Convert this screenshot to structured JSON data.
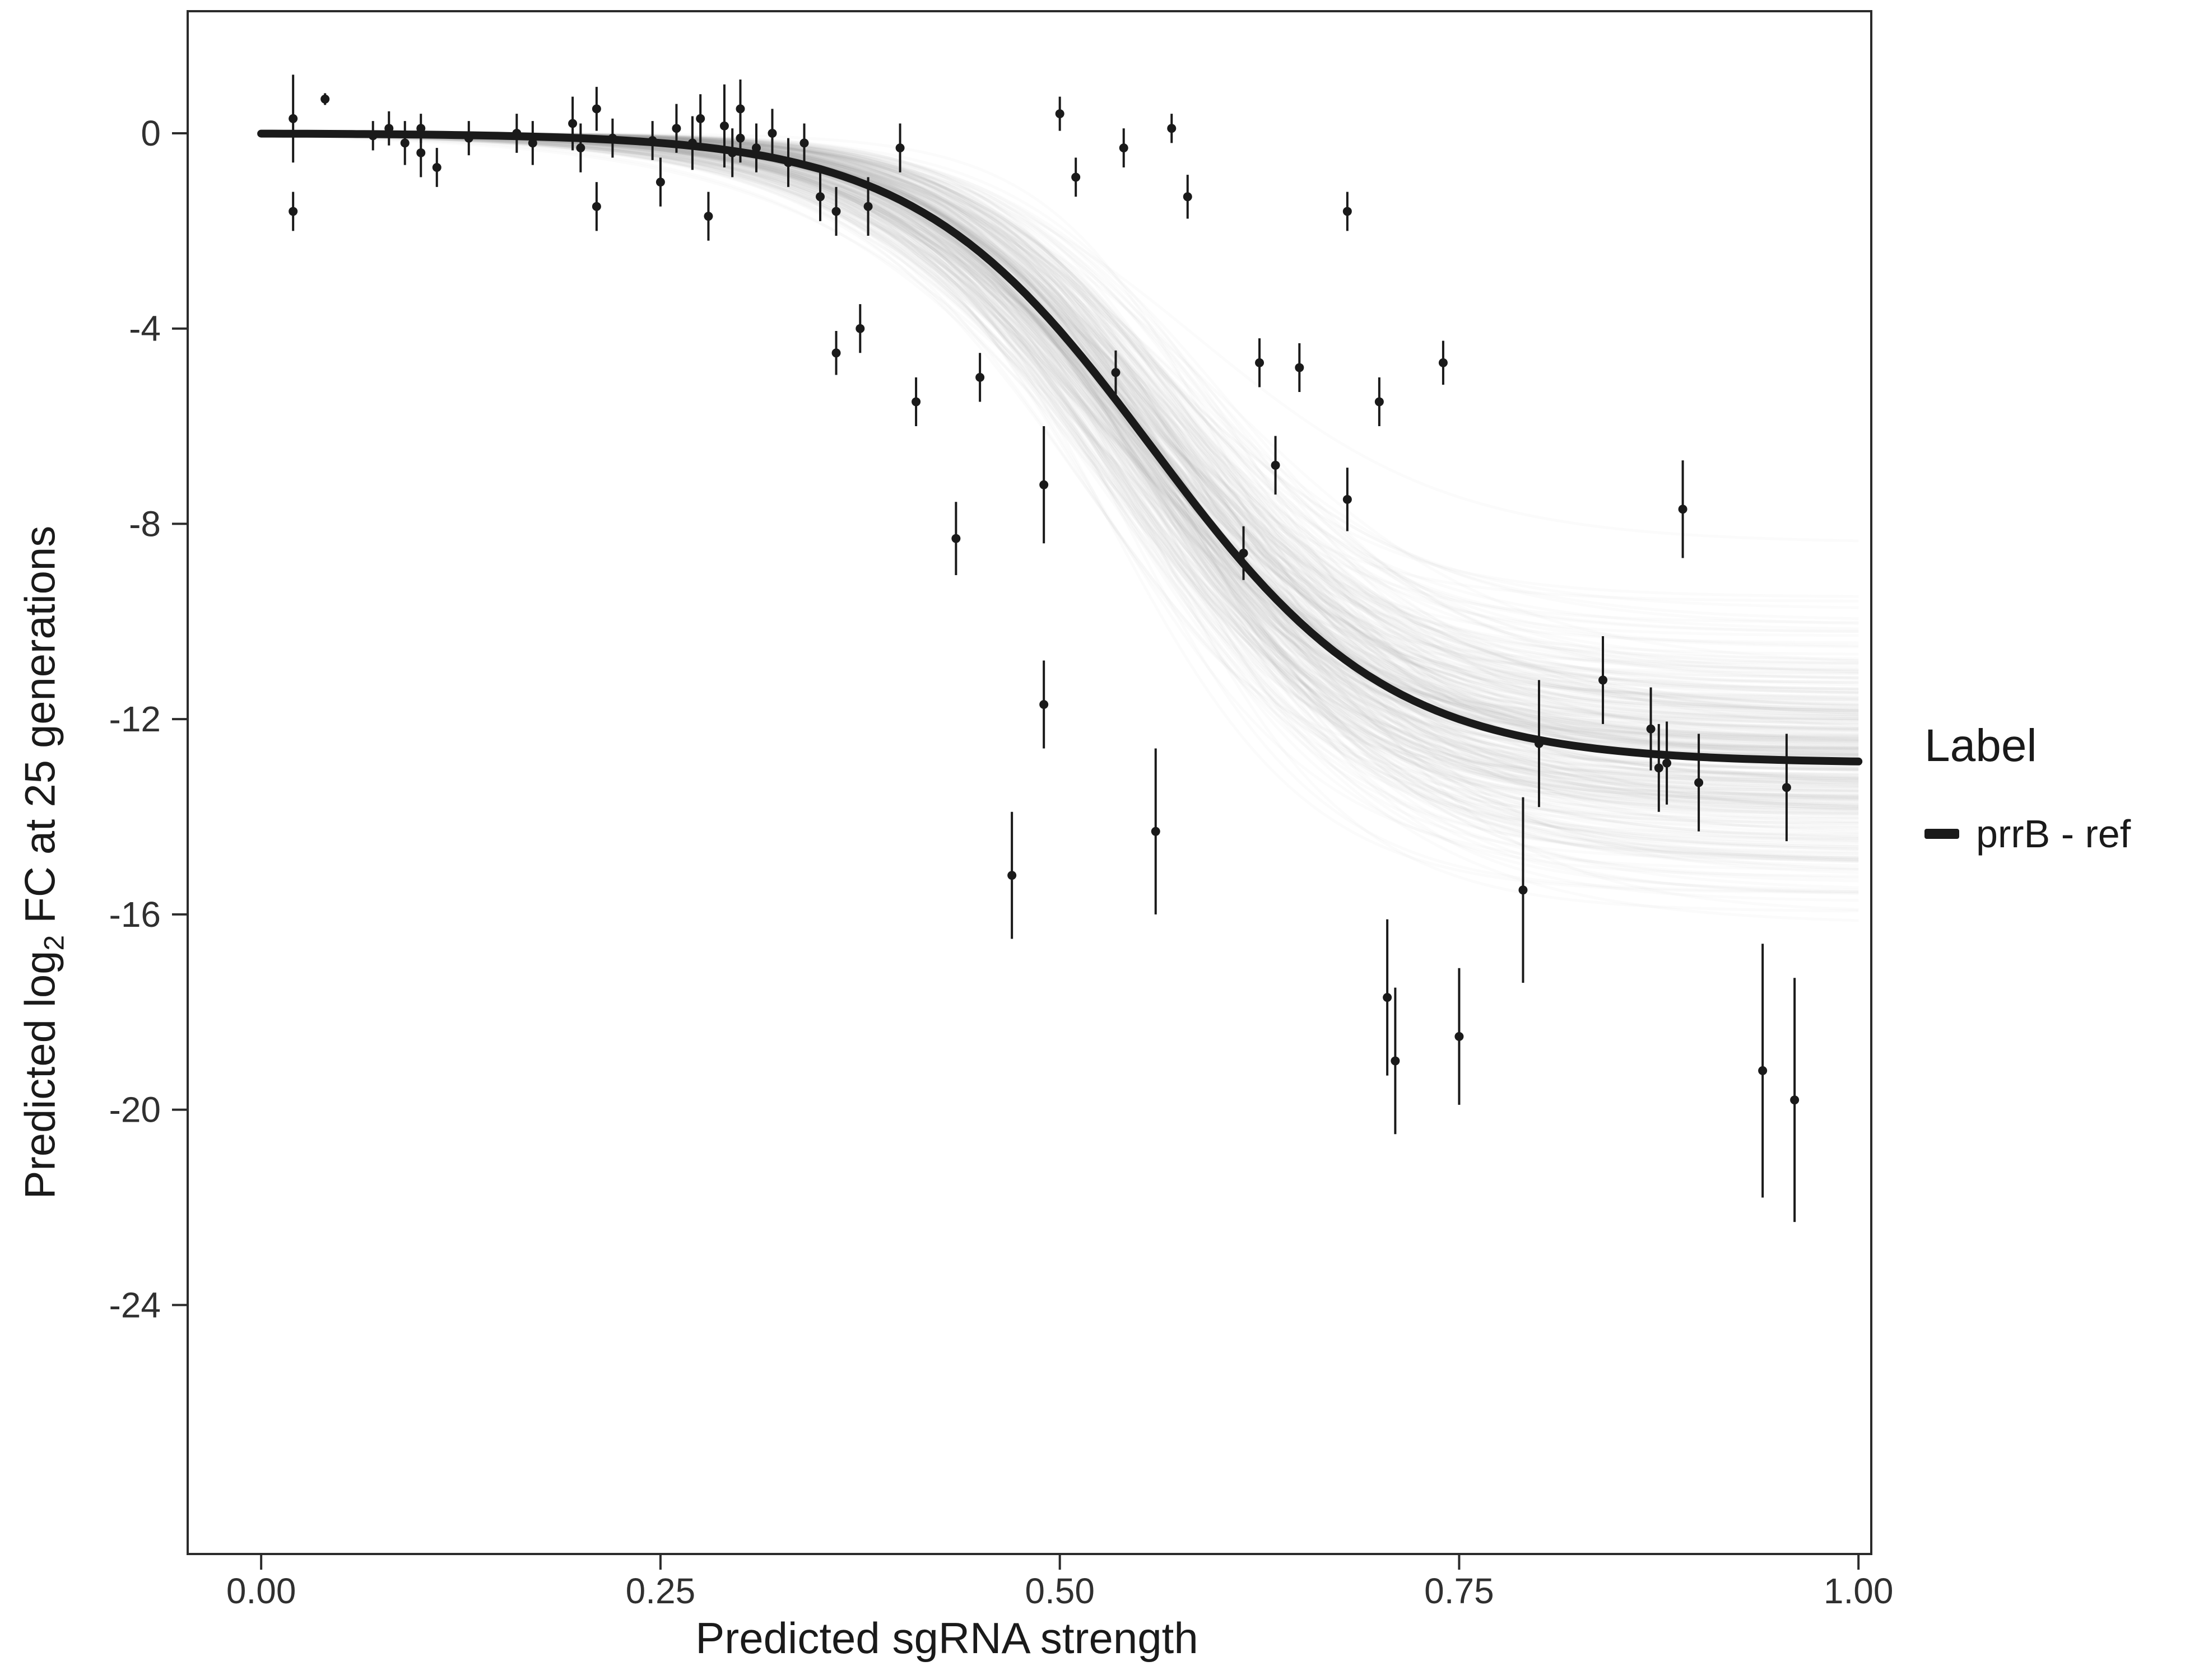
{
  "chart_data": {
    "type": "scatter",
    "title": "",
    "xlabel": "Predicted sgRNA strength",
    "ylabel": "Predicted log₂ FC at 25 generations",
    "ylabel_parts": {
      "pre": "Predicted  log",
      "sub": "2",
      "post": " FC at 25 generations"
    },
    "xlim": [
      -0.046,
      1.008
    ],
    "ylim": [
      -29.1,
      2.5
    ],
    "grid": false,
    "legend_position": "right",
    "xticks": [
      {
        "v": 0.0,
        "label": "0.00"
      },
      {
        "v": 0.25,
        "label": "0.25"
      },
      {
        "v": 0.5,
        "label": "0.50"
      },
      {
        "v": 0.75,
        "label": "0.75"
      },
      {
        "v": 1.0,
        "label": "1.00"
      }
    ],
    "yticks": [
      {
        "v": 0,
        "label": "0"
      },
      {
        "v": -4,
        "label": "-4"
      },
      {
        "v": -8,
        "label": "-8"
      },
      {
        "v": -12,
        "label": "-12"
      },
      {
        "v": -16,
        "label": "-16"
      },
      {
        "v": -20,
        "label": "-20"
      },
      {
        "v": -24,
        "label": "-24"
      }
    ],
    "fit": {
      "model": "sigmoid",
      "L": 12.9,
      "x0": 0.558,
      "k": 13.5
    },
    "ensemble": {
      "count": 320,
      "L_sd": 1.3,
      "x0_sd": 0.02,
      "k_sd": 1.5,
      "alpha": 0.045,
      "seed": 11
    },
    "style": {
      "curve_color": "#1a1a1a",
      "point_color": "#1a1a1a",
      "ensemble_color": "#9a9a9a",
      "axis_color": "#2b2b2b",
      "text_color": "#303030",
      "background": "#ffffff"
    },
    "points": [
      [
        0.02,
        0.3,
        0.9
      ],
      [
        0.02,
        -1.6,
        0.4
      ],
      [
        0.04,
        0.7,
        0.12
      ],
      [
        0.07,
        -0.05,
        0.3
      ],
      [
        0.08,
        0.1,
        0.35
      ],
      [
        0.09,
        -0.2,
        0.45
      ],
      [
        0.1,
        -0.4,
        0.5
      ],
      [
        0.1,
        0.1,
        0.3
      ],
      [
        0.11,
        -0.7,
        0.4
      ],
      [
        0.13,
        -0.1,
        0.35
      ],
      [
        0.16,
        0.0,
        0.4
      ],
      [
        0.17,
        -0.2,
        0.45
      ],
      [
        0.195,
        0.2,
        0.55
      ],
      [
        0.2,
        -0.3,
        0.5
      ],
      [
        0.21,
        0.5,
        0.45
      ],
      [
        0.21,
        -1.5,
        0.5
      ],
      [
        0.22,
        -0.1,
        0.4
      ],
      [
        0.245,
        -0.15,
        0.4
      ],
      [
        0.25,
        -1.0,
        0.5
      ],
      [
        0.26,
        0.1,
        0.5
      ],
      [
        0.27,
        -0.2,
        0.55
      ],
      [
        0.275,
        0.3,
        0.5
      ],
      [
        0.28,
        -1.7,
        0.5
      ],
      [
        0.29,
        0.15,
        0.85
      ],
      [
        0.295,
        -0.4,
        0.5
      ],
      [
        0.3,
        0.5,
        0.6
      ],
      [
        0.3,
        -0.1,
        0.5
      ],
      [
        0.31,
        -0.3,
        0.5
      ],
      [
        0.32,
        0.0,
        0.5
      ],
      [
        0.33,
        -0.6,
        0.5
      ],
      [
        0.34,
        -0.2,
        0.4
      ],
      [
        0.35,
        -1.3,
        0.5
      ],
      [
        0.36,
        -1.6,
        0.5
      ],
      [
        0.36,
        -4.5,
        0.45
      ],
      [
        0.375,
        -4.0,
        0.5
      ],
      [
        0.38,
        -1.5,
        0.6
      ],
      [
        0.4,
        -0.3,
        0.5
      ],
      [
        0.41,
        -5.5,
        0.5
      ],
      [
        0.435,
        -8.3,
        0.75
      ],
      [
        0.45,
        -5.0,
        0.5
      ],
      [
        0.47,
        -15.2,
        1.3
      ],
      [
        0.49,
        -11.7,
        0.9
      ],
      [
        0.49,
        -7.2,
        1.2
      ],
      [
        0.5,
        0.4,
        0.35
      ],
      [
        0.51,
        -0.9,
        0.4
      ],
      [
        0.535,
        -4.9,
        0.45
      ],
      [
        0.54,
        -0.3,
        0.4
      ],
      [
        0.56,
        -14.3,
        1.7
      ],
      [
        0.57,
        0.1,
        0.3
      ],
      [
        0.58,
        -1.3,
        0.45
      ],
      [
        0.615,
        -8.6,
        0.55
      ],
      [
        0.625,
        -4.7,
        0.5
      ],
      [
        0.635,
        -6.8,
        0.6
      ],
      [
        0.65,
        -4.8,
        0.5
      ],
      [
        0.68,
        -7.5,
        0.65
      ],
      [
        0.68,
        -1.6,
        0.4
      ],
      [
        0.7,
        -5.5,
        0.5
      ],
      [
        0.705,
        -17.7,
        1.6
      ],
      [
        0.71,
        -19.0,
        1.5
      ],
      [
        0.74,
        -4.7,
        0.45
      ],
      [
        0.75,
        -18.5,
        1.4
      ],
      [
        0.79,
        -15.5,
        1.9
      ],
      [
        0.8,
        -12.5,
        1.3
      ],
      [
        0.84,
        -11.2,
        0.9
      ],
      [
        0.87,
        -12.2,
        0.85
      ],
      [
        0.875,
        -13.0,
        0.9
      ],
      [
        0.88,
        -12.9,
        0.85
      ],
      [
        0.89,
        -7.7,
        1.0
      ],
      [
        0.9,
        -13.3,
        1.0
      ],
      [
        0.94,
        -19.2,
        2.6
      ],
      [
        0.955,
        -13.4,
        1.1
      ],
      [
        0.96,
        -19.8,
        2.5
      ]
    ],
    "legend": {
      "title": "Label",
      "entries": [
        {
          "label": "prrB - ref",
          "color": "#1a1a1a",
          "marker": "thick-line"
        }
      ]
    }
  }
}
